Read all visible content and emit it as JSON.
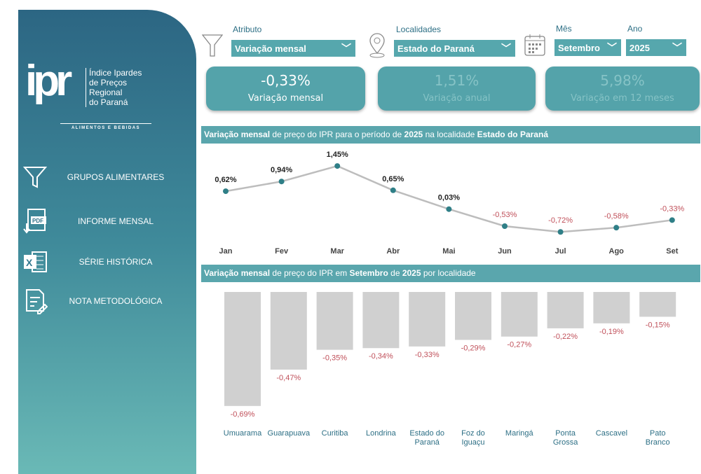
{
  "logo": {
    "mark": "ipr",
    "line1": "Índice Ipardes",
    "line2": "de Preços",
    "line3": "Regional",
    "line4": "do Paraná",
    "sub": "ALIMENTOS E BEBIDAS"
  },
  "nav": [
    {
      "label": "GRUPOS ALIMENTARES",
      "icon": "funnel-icon"
    },
    {
      "label": "INFORME MENSAL",
      "icon": "pdf-icon"
    },
    {
      "label": "SÉRIE HISTÓRICA",
      "icon": "excel-icon"
    },
    {
      "label": "NOTA METODOLÓGICA",
      "icon": "document-edit-icon"
    }
  ],
  "filters": {
    "atributo_label": "Atributo",
    "atributo": "Variação mensal",
    "local_label": "Localidades",
    "local": "Estado do Paraná",
    "mes_label": "Mês",
    "mes": "Setembro",
    "ano_label": "Ano",
    "ano": "2025"
  },
  "kpis": [
    {
      "value": "-0,33%",
      "name": "Variação mensal"
    },
    {
      "value": "1,51%",
      "name": "Variação anual"
    },
    {
      "value": "5,98%",
      "name": "Variação em 12 meses"
    }
  ],
  "line_header": {
    "b1": "Variação mensal",
    "t1": " de preço do IPR para o período de ",
    "b2": "2025",
    "t2": " na localidade ",
    "b3": "Estado do Paraná"
  },
  "bar_header": {
    "b1": "Variação mensal",
    "t1": " de preço do IPR em ",
    "b2": "Setembro",
    "t2": " de ",
    "b3": "2025",
    "t3": " por localidade"
  },
  "colors": {
    "pos": "#222222",
    "neg": "#c0505a",
    "line": "#bdbdbd",
    "dot": "#2f7f87",
    "bar": "#d0d0d0"
  },
  "chart_data": [
    {
      "type": "line",
      "title": "Variação mensal de preço do IPR para o período de 2025 na localidade Estado do Paraná",
      "categories": [
        "Jan",
        "Fev",
        "Mar",
        "Abr",
        "Mai",
        "Jun",
        "Jul",
        "Ago",
        "Set"
      ],
      "values": [
        0.62,
        0.94,
        1.45,
        0.65,
        0.03,
        -0.53,
        -0.72,
        -0.58,
        -0.33
      ],
      "labels": [
        "0,62%",
        "0,94%",
        "1,45%",
        "0,65%",
        "0,03%",
        "-0,53%",
        "-0,72%",
        "-0,58%",
        "-0,33%"
      ]
    },
    {
      "type": "bar",
      "title": "Variação mensal de preço do IPR em Setembro de 2025 por localidade",
      "categories": [
        [
          "Umuarama"
        ],
        [
          "Guarapuava"
        ],
        [
          "Curitiba"
        ],
        [
          "Londrina"
        ],
        [
          "Estado do",
          "Paraná"
        ],
        [
          "Foz do",
          "Iguaçu"
        ],
        [
          "Maringá"
        ],
        [
          "Ponta",
          "Grossa"
        ],
        [
          "Cascavel"
        ],
        [
          "Pato",
          "Branco"
        ]
      ],
      "values": [
        -0.69,
        -0.47,
        -0.35,
        -0.34,
        -0.33,
        -0.29,
        -0.27,
        -0.22,
        -0.19,
        -0.15
      ],
      "labels": [
        "-0,69%",
        "-0,47%",
        "-0,35%",
        "-0,34%",
        "-0,33%",
        "-0,29%",
        "-0,27%",
        "-0,22%",
        "-0,19%",
        "-0,15%"
      ]
    }
  ]
}
